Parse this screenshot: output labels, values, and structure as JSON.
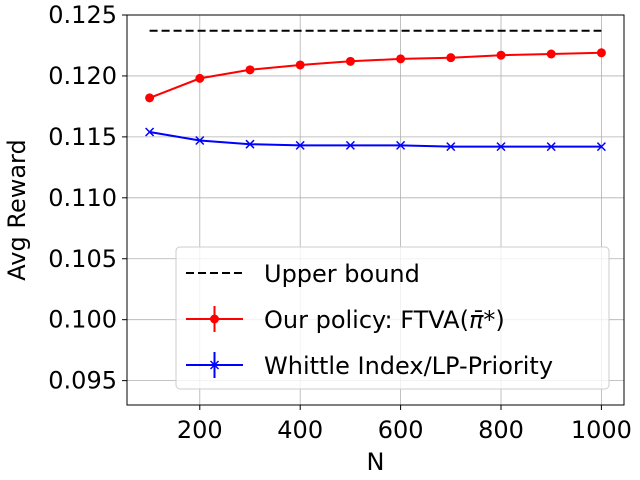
{
  "chart_data": {
    "type": "line",
    "title": "",
    "xlabel": "N",
    "ylabel": "Avg Reward",
    "xlim": [
      55,
      1045
    ],
    "ylim": [
      0.093,
      0.125
    ],
    "xticks": [
      200,
      400,
      600,
      800,
      1000
    ],
    "xtick_labels": [
      "200",
      "400",
      "600",
      "800",
      "1000"
    ],
    "yticks": [
      0.095,
      0.1,
      0.105,
      0.11,
      0.115,
      0.12,
      0.125
    ],
    "ytick_labels": [
      "0.095",
      "0.100",
      "0.105",
      "0.110",
      "0.115",
      "0.120",
      "0.125"
    ],
    "grid": true,
    "legend_position": "lower-right",
    "x": [
      100,
      200,
      300,
      400,
      500,
      600,
      700,
      800,
      900,
      1000
    ],
    "series": [
      {
        "name": "Upper bound",
        "style": "dashed",
        "color": "#000000",
        "marker": "none",
        "values": [
          0.1237,
          0.1237,
          0.1237,
          0.1237,
          0.1237,
          0.1237,
          0.1237,
          0.1237,
          0.1237,
          0.1237
        ]
      },
      {
        "name": "Our policy: FTVA(",
        "name_math": "π̄*",
        "name_suffix": ")",
        "style": "solid",
        "color": "#ff0000",
        "marker": "circle",
        "values": [
          0.1182,
          0.1198,
          0.1205,
          0.1209,
          0.1212,
          0.1214,
          0.1215,
          0.1217,
          0.1218,
          0.1219
        ]
      },
      {
        "name": "Whittle Index/LP-Priority",
        "style": "solid",
        "color": "#0000ff",
        "marker": "x",
        "values": [
          0.1154,
          0.1147,
          0.1144,
          0.1143,
          0.1143,
          0.1143,
          0.1142,
          0.1142,
          0.1142,
          0.1142
        ]
      }
    ]
  }
}
